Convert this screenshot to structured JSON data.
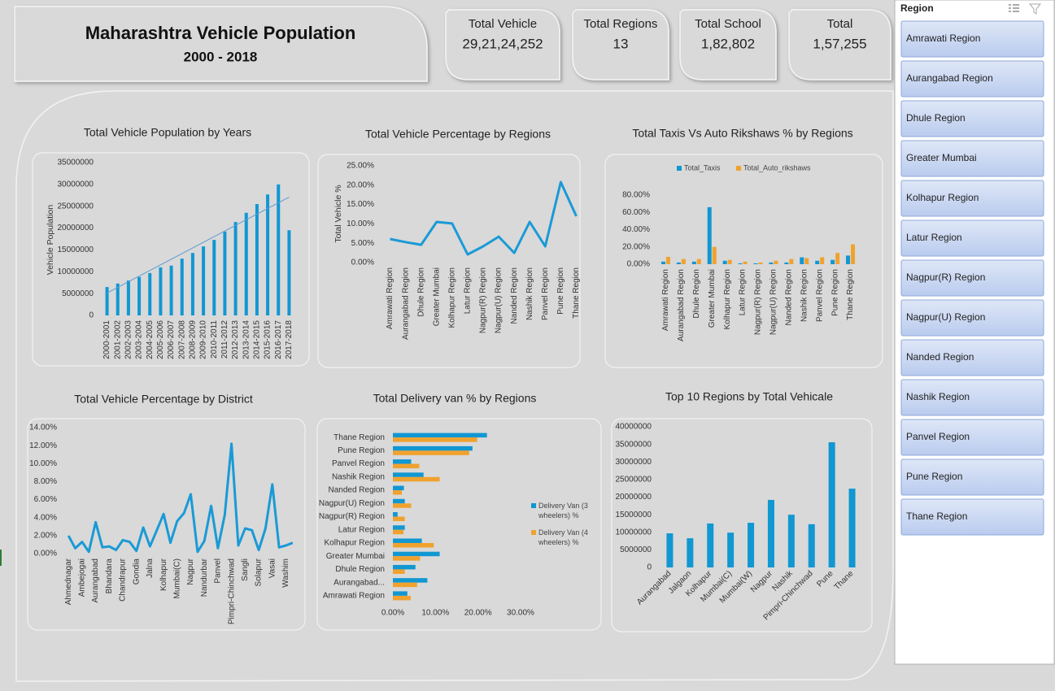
{
  "header": {
    "title": "Maharashtra Vehicle Population",
    "subtitle": "2000 - 2018"
  },
  "kpis": [
    {
      "label": "Total Vehicle",
      "value": "29,21,24,252"
    },
    {
      "label": "Total Regions",
      "value": "13"
    },
    {
      "label": "Total School",
      "value": "1,82,802"
    },
    {
      "label": "Total",
      "value": "1,57,255"
    }
  ],
  "slicer": {
    "title": "Region",
    "items": [
      "Amrawati Region",
      "Aurangabad Region",
      "Dhule Region",
      "Greater Mumbai",
      "Kolhapur Region",
      "Latur Region",
      "Nagpur(R) Region",
      "Nagpur(U) Region",
      "Nanded Region",
      "Nashik Region",
      "Panvel Region",
      "Pune Region",
      "Thane Region"
    ]
  },
  "chart_data": [
    {
      "type": "bar",
      "title": "Total Vehicle Population by Years",
      "y_label": "Vehicle Population",
      "categories": [
        "2000-2001",
        "2001-2002",
        "2002-2003",
        "2003-2004",
        "2004-2005",
        "2005-2006",
        "2006-2007",
        "2007-2008",
        "2008-2009",
        "2009-2010",
        "2010-2011",
        "2011-2012",
        "2012-2013",
        "2013-2014",
        "2014-2015",
        "2015-2016",
        "2016-2017",
        "2017-2018"
      ],
      "values": [
        6500000,
        7300000,
        8000000,
        8800000,
        9700000,
        11000000,
        11400000,
        13000000,
        14300000,
        15800000,
        17300000,
        19200000,
        21400000,
        23500000,
        25500000,
        27700000,
        30000000,
        19500000
      ],
      "color": "#1197d2",
      "trendline": "linear",
      "ylim": [
        0,
        35000000
      ],
      "yticks": [
        0,
        5000000,
        10000000,
        15000000,
        20000000,
        25000000,
        30000000,
        35000000
      ]
    },
    {
      "type": "line",
      "title": "Total Vehicle Percentage by Regions",
      "y_label": "Total Vehicle %",
      "categories": [
        "Amrawati Region",
        "Aurangabad Region",
        "Dhule Region",
        "Greater Mumbai",
        "Kolhapur Region",
        "Latur Region",
        "Nagpur(R) Region",
        "Nagpur(U) Region",
        "Nanded Region",
        "Nashik Region",
        "Panvel Region",
        "Pune Region",
        "Thane Region"
      ],
      "values": [
        6.1,
        5.3,
        4.6,
        10.5,
        10.1,
        2.1,
        4.2,
        6.7,
        2.5,
        10.5,
        4.2,
        20.8,
        12.0
      ],
      "color": "#1a9ad6",
      "ylim": [
        0,
        25
      ],
      "yticks": [
        {
          "value": 0,
          "label": "0.00%"
        },
        {
          "value": 5,
          "label": "5.00%"
        },
        {
          "value": 10,
          "label": "10.00%"
        },
        {
          "value": 15,
          "label": "15.00%"
        },
        {
          "value": 20,
          "label": "20.00%"
        },
        {
          "value": 25,
          "label": "25.00%"
        }
      ]
    },
    {
      "type": "bar",
      "title": "Total Taxis Vs Auto Rikshaws % by Regions",
      "categories": [
        "Amrawati Region",
        "Aurangabad Region",
        "Dhule Region",
        "Greater Mumbai",
        "Kolhapur Region",
        "Latur Region",
        "Nagpur(R) Region",
        "Nagpur(U) Region",
        "Nanded Region",
        "Nashik Region",
        "Panvel Region",
        "Pune Region",
        "Thane Region"
      ],
      "series": [
        {
          "name": "Total_Taxis",
          "color": "#1197d2",
          "values": [
            3,
            2,
            3,
            66,
            4,
            1,
            1,
            2,
            2,
            8,
            4,
            5,
            10
          ]
        },
        {
          "name": "Total_Auto_rikshaws",
          "color": "#f0a22e",
          "values": [
            8.5,
            6,
            6,
            20,
            5,
            3,
            2,
            4,
            6,
            7,
            8,
            13,
            23
          ]
        }
      ],
      "legend": "top",
      "ylim": [
        0,
        80
      ],
      "yticks": [
        {
          "value": 0,
          "label": "0.00%"
        },
        {
          "value": 20,
          "label": "20.00%"
        },
        {
          "value": 40,
          "label": "40.00%"
        },
        {
          "value": 60,
          "label": "60.00%"
        },
        {
          "value": 80,
          "label": "80.00%"
        }
      ]
    },
    {
      "type": "line",
      "title": "Total Vehicle Percentage by District",
      "categories": [
        "Ahmednagar",
        null,
        "Ambejogai",
        null,
        "Aurangabad",
        null,
        "Bhandara",
        null,
        "Chandrapur",
        null,
        "Gondia",
        null,
        "Jalna",
        null,
        "Kolhapur",
        null,
        "Mumbai(C)",
        null,
        "Nagpur",
        null,
        "Nandurbar",
        null,
        "Panvel",
        null,
        "Pimpri-Chinchwad",
        null,
        "Sangli",
        null,
        "Solapur",
        null,
        "Vasai",
        null,
        "Washim",
        null
      ],
      "values": [
        2.0,
        0.6,
        1.3,
        0.2,
        3.5,
        0.7,
        0.8,
        0.4,
        1.5,
        1.3,
        0.3,
        2.9,
        0.8,
        2.6,
        4.4,
        1.2,
        3.6,
        4.5,
        6.6,
        0.2,
        1.4,
        5.3,
        0.6,
        4.3,
        12.2,
        0.9,
        2.8,
        2.6,
        0.4,
        2.8,
        7.7,
        0.7,
        0.9,
        1.2
      ],
      "color": "#1a9ad6",
      "ylim": [
        0,
        14
      ],
      "yticks": [
        {
          "value": 0,
          "label": "0.00%"
        },
        {
          "value": 2,
          "label": "2.00%"
        },
        {
          "value": 4,
          "label": "4.00%"
        },
        {
          "value": 6,
          "label": "6.00%"
        },
        {
          "value": 8,
          "label": "8.00%"
        },
        {
          "value": 10,
          "label": "10.00%"
        },
        {
          "value": 12,
          "label": "12.00%"
        },
        {
          "value": 14,
          "label": "14.00%"
        }
      ]
    },
    {
      "type": "barh",
      "title": "Total Delivery van % by Regions",
      "categories": [
        "Amrawati Region",
        "Aurangabad...",
        "Dhule Region",
        "Greater Mumbai",
        "Kolhapur Region",
        "Latur Region",
        "Nagpur(R) Region",
        "Nagpur(U) Region",
        "Nanded Region",
        "Nashik Region",
        "Panvel Region",
        "Pune Region",
        "Thane Region"
      ],
      "series": [
        {
          "name": "Delivery Van (3 wheelers) %",
          "color": "#1197d2",
          "values": [
            3.4,
            8.1,
            5.3,
            11.0,
            6.8,
            2.8,
            1.1,
            2.8,
            2.6,
            7.2,
            4.3,
            18.7,
            22.1
          ]
        },
        {
          "name": "Delivery Van (4 wheelers) %",
          "color": "#f0a22e",
          "values": [
            4.2,
            5.7,
            2.8,
            6.4,
            9.6,
            2.5,
            2.8,
            4.3,
            2.1,
            11.0,
            6.2,
            17.9,
            19.8
          ]
        }
      ],
      "legend": "right",
      "xlim": [
        0,
        30
      ],
      "xticks": [
        {
          "value": 0,
          "label": "0.00%"
        },
        {
          "value": 10,
          "label": "10.00%"
        },
        {
          "value": 20,
          "label": "20.00%"
        },
        {
          "value": 30,
          "label": "30.00%"
        }
      ]
    },
    {
      "type": "bar",
      "title": "Top 10 Regions by Total Vehicale",
      "categories": [
        "Aurangabad",
        "Jalgaon",
        "Kolhapur",
        "Mumbai(C)",
        "Mumbai(W)",
        "Nagpur",
        "Nashik",
        "Pimpri-Chinchwad",
        "Pune",
        "Thane"
      ],
      "values": [
        9700000,
        8300000,
        12500000,
        9900000,
        12700000,
        19200000,
        15000000,
        12300000,
        35600000,
        22400000
      ],
      "color": "#1197d2",
      "ylim": [
        0,
        40000000
      ],
      "yticks": [
        0,
        5000000,
        10000000,
        15000000,
        20000000,
        25000000,
        30000000,
        35000000,
        40000000
      ]
    }
  ]
}
